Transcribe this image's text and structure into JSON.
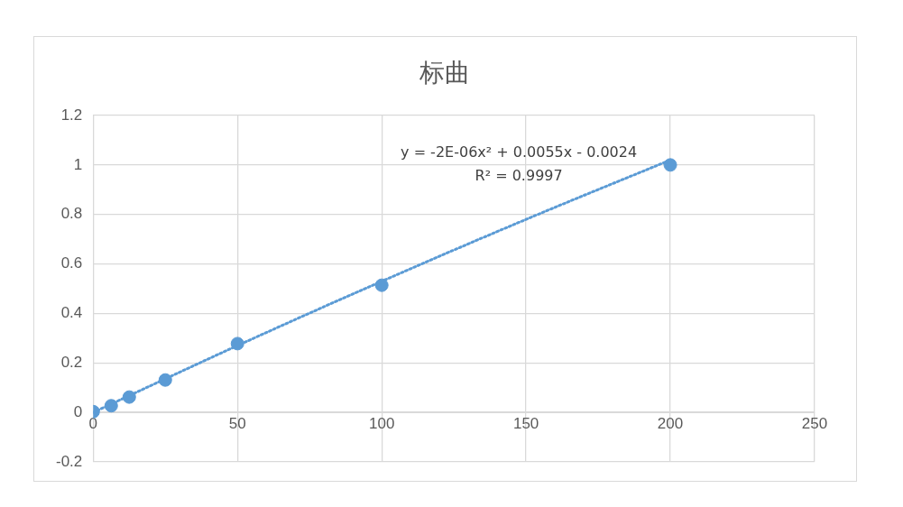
{
  "chart_data": {
    "type": "scatter",
    "title": "标曲",
    "series": [
      {
        "color": "#5b9bd5",
        "marker": "circle",
        "x": [
          0,
          6.25,
          12.5,
          25,
          50,
          100,
          200
        ],
        "values": [
          0.003,
          0.027,
          0.062,
          0.131,
          0.278,
          0.514,
          1.0
        ]
      },
      {
        "type": "line",
        "color": "#5b9bd5",
        "line_style": "dotted",
        "marker": "none",
        "x": [
          0,
          50,
          100,
          150,
          200
        ],
        "values": [
          0,
          0.27,
          0.53,
          0.78,
          1.02
        ]
      }
    ],
    "annotations": [
      "y = -2E-06x² + 0.0055x - 0.0024",
      "R² = 0.9997"
    ],
    "xlim": [
      0,
      250
    ],
    "xticks": [
      0,
      50,
      100,
      150,
      200,
      250
    ],
    "ylim": [
      -0.2,
      1.2
    ],
    "yticks": [
      -0.2,
      0,
      0.2,
      0.4,
      0.6,
      0.8,
      1,
      1.2
    ],
    "grid": true,
    "legend": false
  }
}
